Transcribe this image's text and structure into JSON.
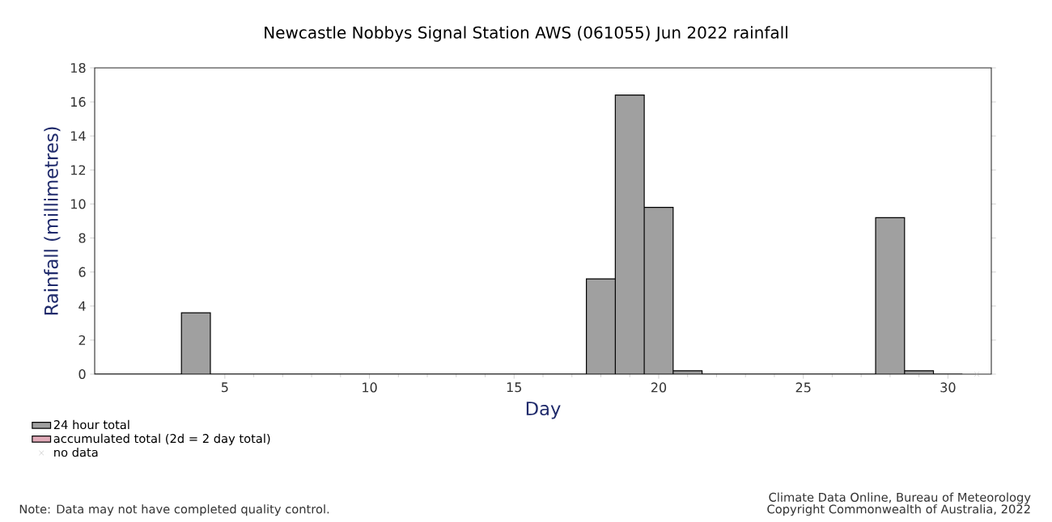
{
  "chart_data": {
    "type": "bar",
    "title": "Newcastle Nobbys Signal Station AWS (061055) Jun 2022 rainfall",
    "xlabel": "Day",
    "ylabel": "Rainfall (millimetres)",
    "x": [
      1,
      2,
      3,
      4,
      5,
      6,
      7,
      8,
      9,
      10,
      11,
      12,
      13,
      14,
      15,
      16,
      17,
      18,
      19,
      20,
      21,
      22,
      23,
      24,
      25,
      26,
      27,
      28,
      29,
      30
    ],
    "series": [
      {
        "name": "24 hour total",
        "color": "#a0a0a0",
        "values": [
          0,
          0,
          0,
          3.6,
          0,
          0,
          0,
          0,
          0,
          0,
          0,
          0,
          0,
          0,
          0,
          0,
          0,
          5.6,
          16.4,
          9.8,
          0.2,
          0,
          0,
          0,
          0,
          0,
          0,
          9.2,
          0.2,
          0
        ]
      },
      {
        "name": "accumulated total (2d = 2 day total)",
        "color": "#e0aab8",
        "values": [
          null,
          null,
          null,
          null,
          null,
          null,
          null,
          null,
          null,
          null,
          null,
          null,
          null,
          null,
          null,
          null,
          null,
          null,
          null,
          null,
          null,
          null,
          null,
          null,
          null,
          null,
          null,
          null,
          null,
          null
        ]
      },
      {
        "name": "no data",
        "type": "scatter",
        "marker": "cross",
        "color": "#b0b0b0",
        "x": [
          31
        ],
        "values": [
          0
        ]
      }
    ],
    "xlim": [
      0.5,
      31.5
    ],
    "xticks": [
      5,
      10,
      15,
      20,
      25,
      30
    ],
    "ylim": [
      0,
      18
    ],
    "yticks": [
      0,
      2,
      4,
      6,
      8,
      10,
      12,
      14,
      16,
      18
    ],
    "legend": "bottom left",
    "annotations": [
      "Note: Data may not have completed quality control.",
      "Climate Data Online, Bureau of Meteorology",
      "Copyright Commonwealth of Australia, 2022"
    ]
  }
}
